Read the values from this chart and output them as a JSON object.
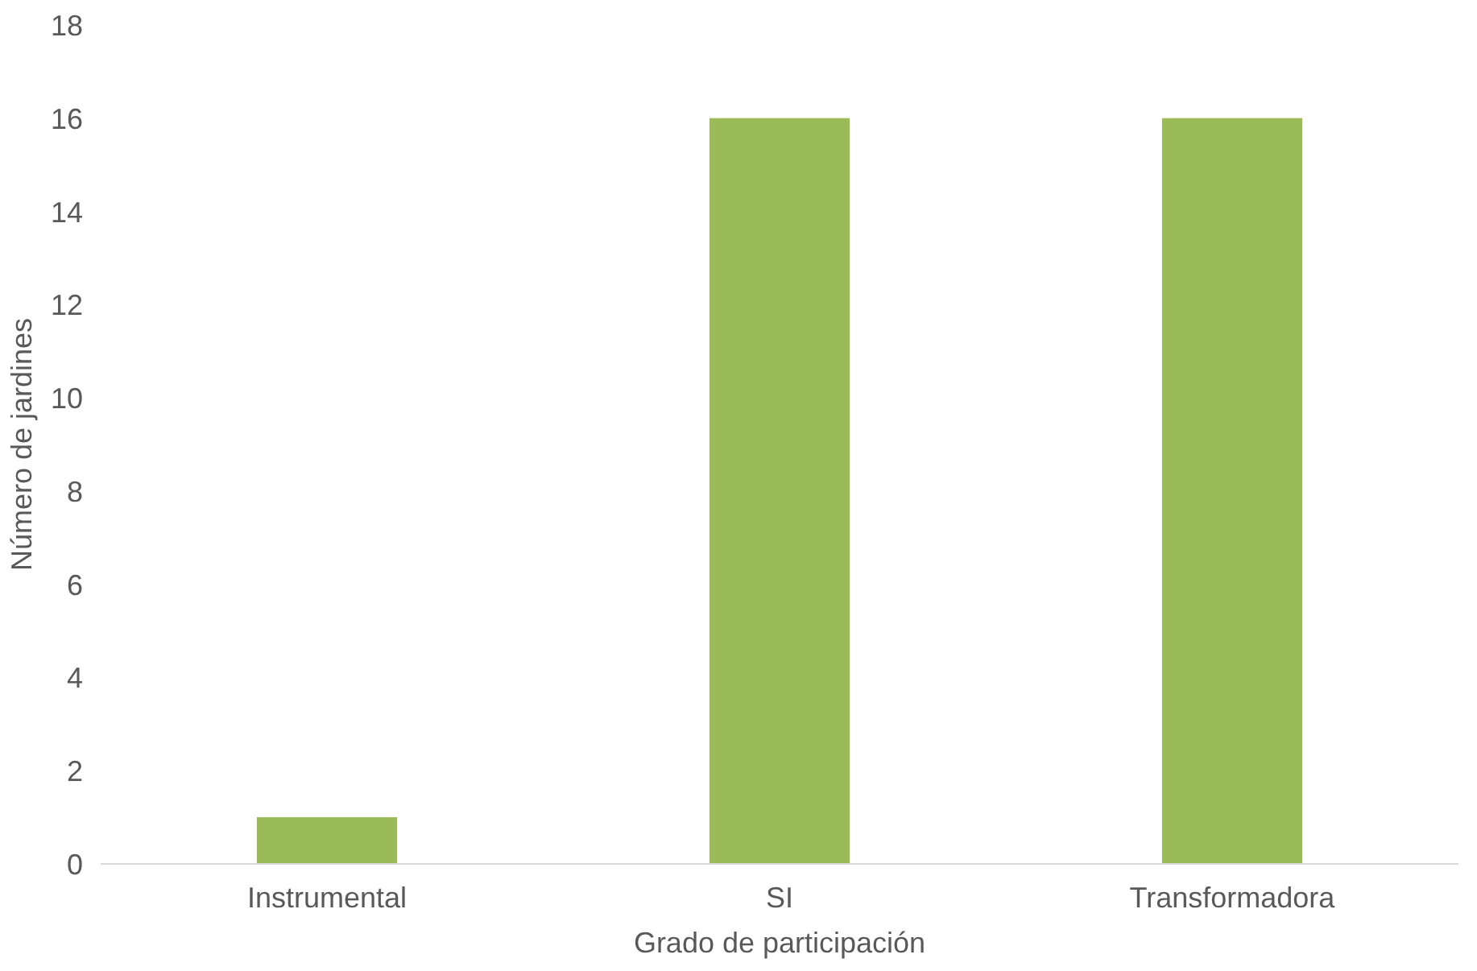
{
  "chart_data": {
    "type": "bar",
    "xlabel": "Grado de participación",
    "ylabel": "Número de jardines",
    "categories": [
      "Instrumental",
      "SI",
      "Transformadora"
    ],
    "values": [
      1,
      16,
      16
    ],
    "color": "#9bbb59",
    "ylim": [
      0,
      18
    ],
    "yticks": [
      0,
      2,
      4,
      6,
      8,
      10,
      12,
      14,
      16,
      18
    ]
  }
}
